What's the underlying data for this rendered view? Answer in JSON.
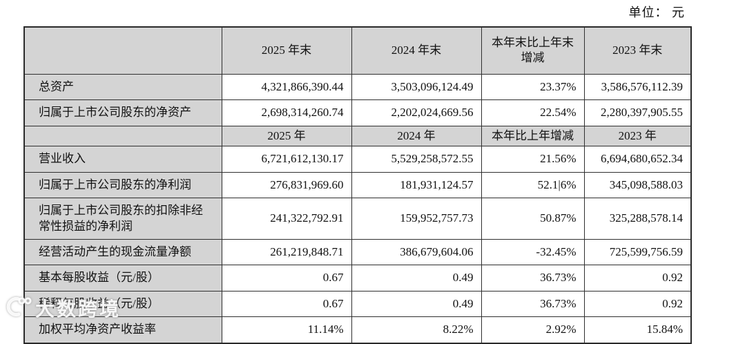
{
  "unit_label": "单位： 元",
  "watermark": {
    "text": "大数跨境"
  },
  "table": {
    "sections": [
      {
        "header": {
          "label": "",
          "cols": [
            "2025 年末",
            "2024 年末",
            "本年末比上年末增减",
            "2023 年末"
          ]
        },
        "rows": [
          {
            "label": "总资产",
            "values": [
              "4,321,866,390.44",
              "3,503,096,124.49",
              "23.37%",
              "3,586,576,112.39"
            ]
          },
          {
            "label": "归属于上市公司股东的净资产",
            "values": [
              "2,698,314,260.74",
              "2,202,024,669.56",
              "22.54%",
              "2,280,397,905.55"
            ]
          }
        ]
      },
      {
        "header": {
          "label": "",
          "cols": [
            "2025 年",
            "2024 年",
            "本年比上年增减",
            "2023 年"
          ]
        },
        "rows": [
          {
            "label": "营业收入",
            "values": [
              "6,721,612,130.17",
              "5,529,258,572.55",
              "21.56%",
              "6,694,680,652.34"
            ]
          },
          {
            "label": "归属于上市公司股东的净利润",
            "values": [
              "276,831,969.60",
              "181,931,124.57",
              "52.1|6%",
              "345,098,588.03"
            ]
          },
          {
            "label": "归属于上市公司股东的扣除非经常性损益的净利润",
            "values": [
              "241,322,792.91",
              "159,952,757.73",
              "50.87%",
              "325,288,578.14"
            ]
          },
          {
            "label": "经营活动产生的现金流量净额",
            "values": [
              "261,219,848.71",
              "386,679,604.06",
              "-32.45%",
              "725,599,756.59"
            ]
          },
          {
            "label": "基本每股收益（元/股）",
            "values": [
              "0.67",
              "0.49",
              "36.73%",
              "0.92"
            ]
          },
          {
            "label": "稀释每股收益（元/股）",
            "values": [
              "0.67",
              "0.49",
              "36.73%",
              "0.92"
            ]
          },
          {
            "label": "加权平均净资产收益率",
            "values": [
              "11.14%",
              "8.22%",
              "2.92%",
              "15.84%"
            ]
          }
        ]
      }
    ]
  }
}
